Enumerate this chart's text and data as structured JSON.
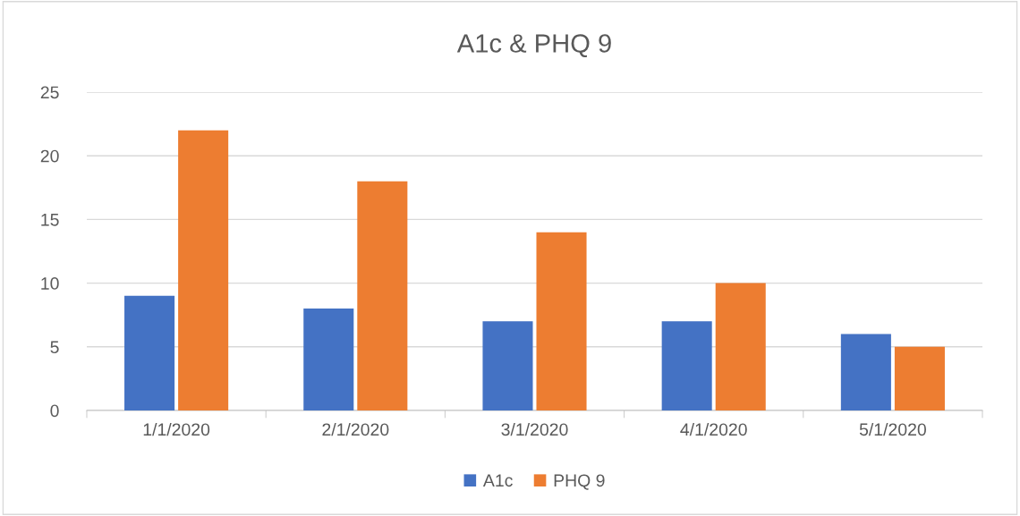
{
  "chart_data": {
    "type": "bar",
    "title": "A1c & PHQ 9",
    "categories": [
      "1/1/2020",
      "2/1/2020",
      "3/1/2020",
      "4/1/2020",
      "5/1/2020"
    ],
    "series": [
      {
        "name": "A1c",
        "color": "#4472c4",
        "values": [
          9,
          8,
          7,
          7,
          6
        ]
      },
      {
        "name": "PHQ 9",
        "color": "#ed7d31",
        "values": [
          22,
          18,
          14,
          10,
          5
        ]
      }
    ],
    "ylim": [
      0,
      25
    ],
    "yticks": [
      0,
      5,
      10,
      15,
      20,
      25
    ],
    "grid": "y",
    "legend": "bottom"
  }
}
